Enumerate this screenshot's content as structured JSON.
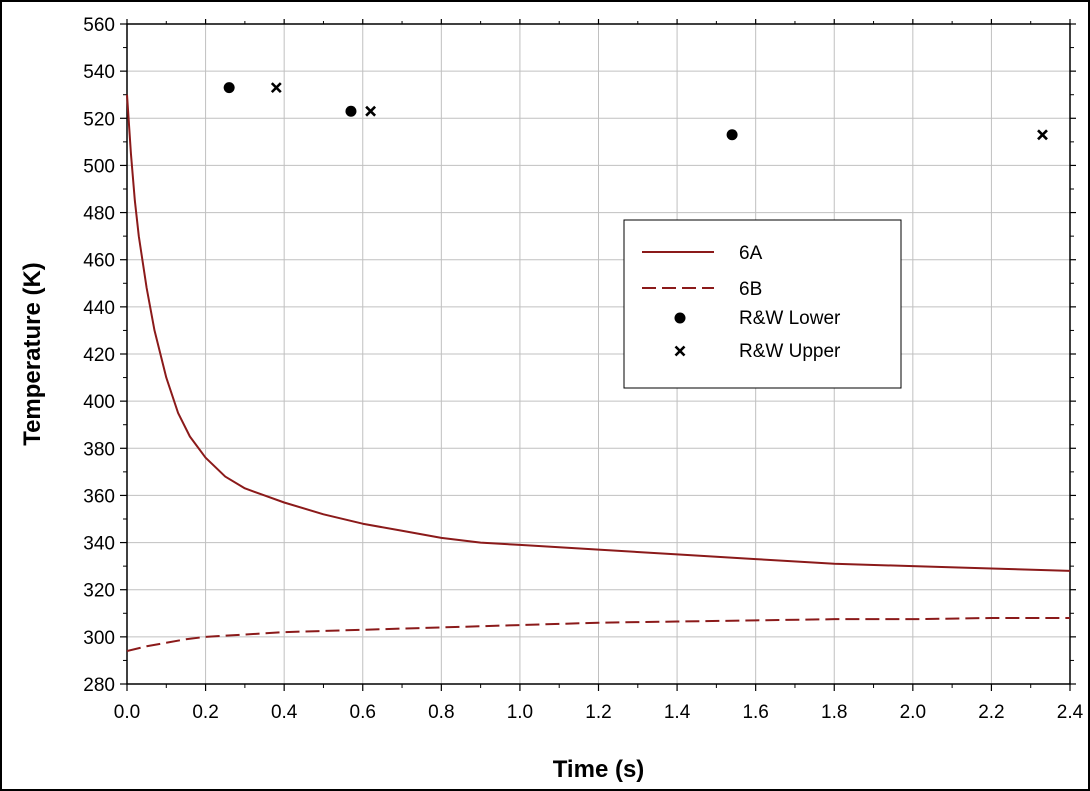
{
  "chart_data": {
    "type": "line",
    "title": "",
    "xlabel": "Time (s)",
    "ylabel": "Temperature (K)",
    "xlim": [
      0.0,
      2.4
    ],
    "ylim": [
      280,
      560
    ],
    "xticks": [
      "0.0",
      "0.2",
      "0.4",
      "0.6",
      "0.8",
      "1.0",
      "1.2",
      "1.4",
      "1.6",
      "1.8",
      "2.0",
      "2.2",
      "2.4"
    ],
    "yticks": [
      "280",
      "300",
      "320",
      "340",
      "360",
      "380",
      "400",
      "420",
      "440",
      "460",
      "480",
      "500",
      "520",
      "540",
      "560"
    ],
    "grid": true,
    "legend_position": "center-right",
    "series": [
      {
        "name": "6A",
        "style": "solid line",
        "color": "#8B1A1A",
        "x": [
          0.0,
          0.01,
          0.02,
          0.03,
          0.05,
          0.07,
          0.1,
          0.13,
          0.16,
          0.2,
          0.25,
          0.3,
          0.35,
          0.4,
          0.5,
          0.6,
          0.7,
          0.8,
          0.9,
          1.0,
          1.2,
          1.4,
          1.6,
          1.8,
          2.0,
          2.2,
          2.4
        ],
        "y": [
          530,
          505,
          485,
          470,
          448,
          430,
          410,
          395,
          385,
          376,
          368,
          363,
          360,
          357,
          352,
          348,
          345,
          342,
          340,
          339,
          337,
          335,
          333,
          331,
          330,
          329,
          328
        ]
      },
      {
        "name": "6B",
        "style": "dashed line",
        "color": "#8B1A1A",
        "x": [
          0.0,
          0.05,
          0.1,
          0.15,
          0.2,
          0.3,
          0.4,
          0.6,
          0.8,
          1.0,
          1.2,
          1.4,
          1.6,
          1.8,
          2.0,
          2.2,
          2.4
        ],
        "y": [
          294,
          296,
          297.5,
          299,
          300,
          301,
          302,
          303,
          304,
          305,
          306,
          306.5,
          307,
          307.5,
          307.5,
          308,
          308
        ]
      },
      {
        "name": "R&W Lower",
        "style": "filled circle markers",
        "color": "#000000",
        "x": [
          0.26,
          0.57,
          1.54
        ],
        "y": [
          533,
          523,
          513
        ]
      },
      {
        "name": "R&W Upper",
        "style": "x markers",
        "color": "#000000",
        "x": [
          0.38,
          0.62,
          2.33
        ],
        "y": [
          533,
          523,
          513
        ]
      }
    ]
  }
}
